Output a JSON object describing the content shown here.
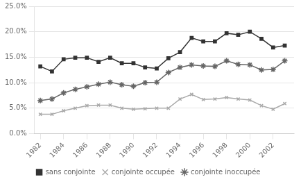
{
  "chart_data": {
    "type": "line",
    "x": [
      1982,
      1983,
      1984,
      1985,
      1986,
      1987,
      1988,
      1989,
      1990,
      1991,
      1992,
      1993,
      1994,
      1995,
      1996,
      1997,
      1998,
      1999,
      2000,
      2001,
      2002,
      2003
    ],
    "series": [
      {
        "name": "sans conjointe",
        "color": "#333333",
        "marker": "square",
        "values": [
          0.132,
          0.122,
          0.146,
          0.149,
          0.149,
          0.141,
          0.149,
          0.138,
          0.138,
          0.13,
          0.128,
          0.148,
          0.16,
          0.188,
          0.181,
          0.181,
          0.197,
          0.194,
          0.2,
          0.186,
          0.169,
          0.173
        ]
      },
      {
        "name": "conjointe occupée",
        "color": "#aaaaaa",
        "marker": "x",
        "values": [
          0.038,
          0.038,
          0.045,
          0.05,
          0.055,
          0.056,
          0.056,
          0.05,
          0.048,
          0.049,
          0.05,
          0.05,
          0.068,
          0.077,
          0.067,
          0.068,
          0.071,
          0.068,
          0.066,
          0.055,
          0.048,
          0.059
        ]
      },
      {
        "name": "conjointe inoccupée",
        "color": "#666666",
        "marker": "star",
        "values": [
          0.065,
          0.068,
          0.08,
          0.087,
          0.092,
          0.097,
          0.101,
          0.096,
          0.093,
          0.1,
          0.101,
          0.12,
          0.13,
          0.135,
          0.133,
          0.132,
          0.143,
          0.136,
          0.135,
          0.125,
          0.126,
          0.143
        ]
      }
    ],
    "xlim": [
      1981.5,
      2003.8
    ],
    "xticks": [
      1982,
      1984,
      1986,
      1988,
      1990,
      1992,
      1994,
      1996,
      1998,
      2000,
      2002
    ],
    "ylim": [
      0.0,
      0.25
    ],
    "yticks": [
      {
        "value": 0.0,
        "label": "0.0%"
      },
      {
        "value": 0.05,
        "label": "5.0%"
      },
      {
        "value": 0.1,
        "label": "10.0%"
      },
      {
        "value": 0.15,
        "label": "15.0%"
      },
      {
        "value": 0.2,
        "label": "20.0%"
      },
      {
        "value": 0.25,
        "label": "25.0%"
      }
    ],
    "grid": "y",
    "legend": "bottom"
  }
}
